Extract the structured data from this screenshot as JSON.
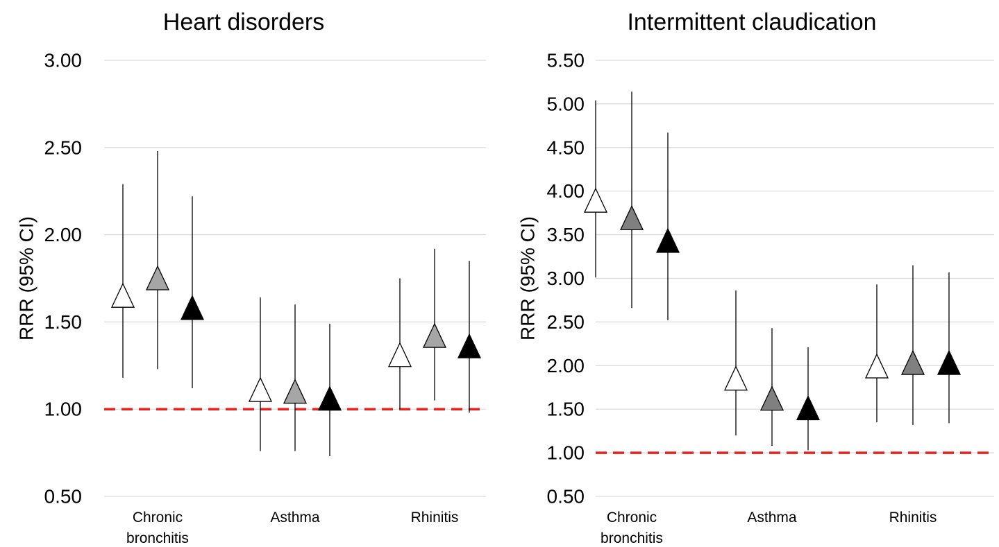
{
  "chart_data": [
    {
      "type": "scatter",
      "title": "Heart disorders",
      "ylabel": "RRR (95% CI)",
      "ylim": [
        0.5,
        3.0
      ],
      "yticks": [
        "0.50",
        "1.00",
        "1.50",
        "2.00",
        "2.50",
        "3.00"
      ],
      "grid": true,
      "categories": [
        [
          "Chronic",
          "bronchitis"
        ],
        [
          "Asthma"
        ],
        [
          "Rhinitis"
        ]
      ],
      "reference_line": 1.0,
      "reference_color": "#e8211d",
      "series": [
        {
          "color": "#ffffff",
          "points": [
            [
              1.64,
              1.18,
              2.29
            ],
            [
              1.1,
              0.76,
              1.64
            ],
            [
              1.3,
              1.0,
              1.75
            ]
          ]
        },
        {
          "color": "#a6a6a6",
          "points": [
            [
              1.74,
              1.23,
              2.48
            ],
            [
              1.09,
              0.76,
              1.6
            ],
            [
              1.41,
              1.05,
              1.92
            ]
          ]
        },
        {
          "color": "#000000",
          "points": [
            [
              1.57,
              1.12,
              2.22
            ],
            [
              1.05,
              0.73,
              1.49
            ],
            [
              1.35,
              0.98,
              1.85
            ]
          ]
        }
      ]
    },
    {
      "type": "scatter",
      "title": "Intermittent claudication",
      "ylabel": "RRR (95% CI)",
      "ylim": [
        0.5,
        5.5
      ],
      "yticks": [
        "0.50",
        "1.00",
        "1.50",
        "2.00",
        "2.50",
        "3.00",
        "3.50",
        "4.00",
        "4.50",
        "5.00",
        "5.50"
      ],
      "grid": true,
      "categories": [
        [
          "Chronic",
          "bronchitis"
        ],
        [
          "Asthma"
        ],
        [
          "Rhinitis"
        ]
      ],
      "reference_line": 1.0,
      "reference_color": "#e8211d",
      "series": [
        {
          "color": "#ffffff",
          "points": [
            [
              3.87,
              3.01,
              5.04
            ],
            [
              1.83,
              1.2,
              2.86
            ],
            [
              1.97,
              1.35,
              2.93
            ]
          ]
        },
        {
          "color": "#808080",
          "points": [
            [
              3.67,
              2.66,
              5.14
            ],
            [
              1.6,
              1.08,
              2.43
            ],
            [
              2.01,
              1.32,
              3.15
            ]
          ]
        },
        {
          "color": "#000000",
          "points": [
            [
              3.41,
              2.52,
              4.67
            ],
            [
              1.49,
              1.03,
              2.21
            ],
            [
              2.01,
              1.34,
              3.07
            ]
          ]
        }
      ]
    }
  ]
}
